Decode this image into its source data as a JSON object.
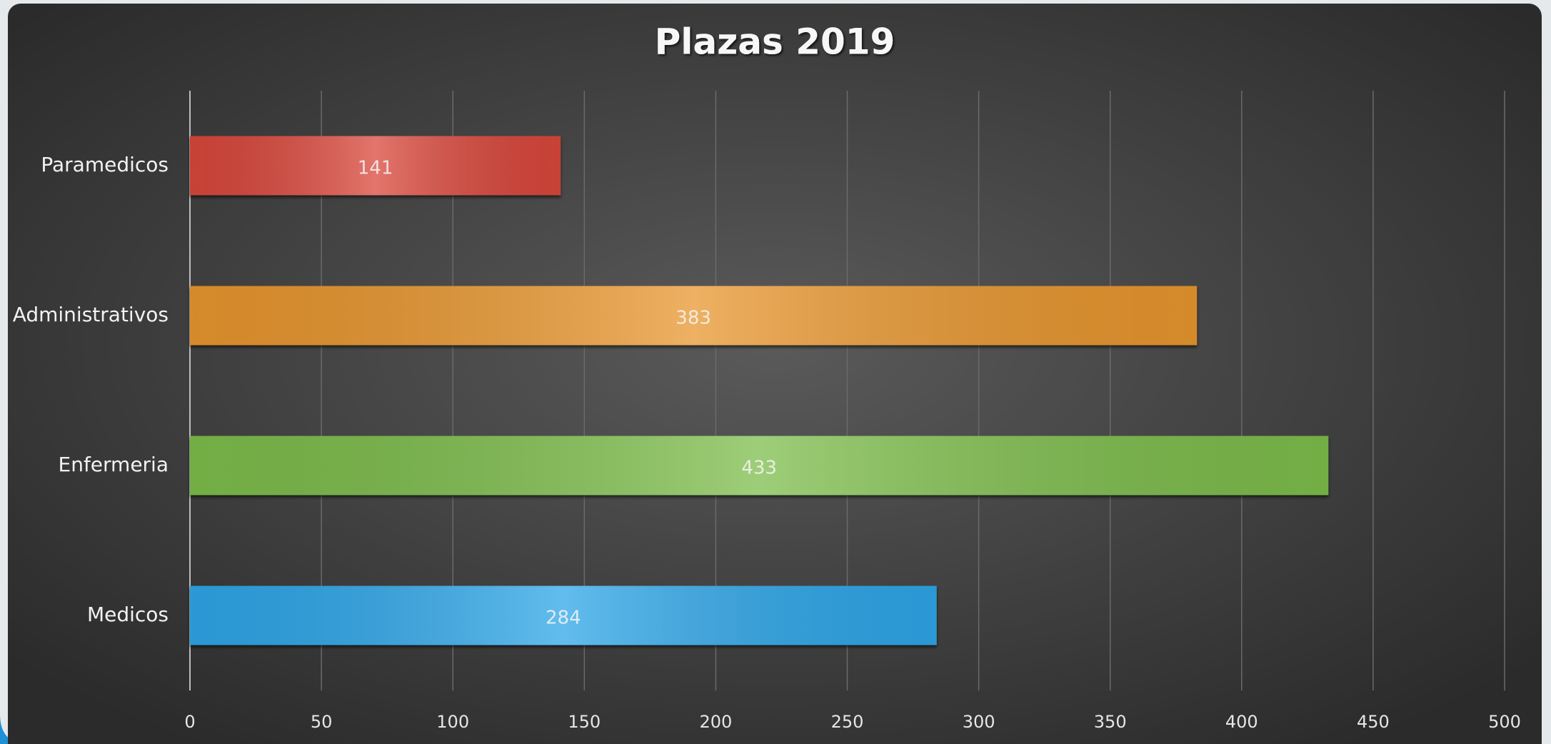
{
  "chart_data": {
    "type": "hbar",
    "title": "Plazas 2019",
    "categories": [
      "Paramedicos",
      "Administrativos",
      "Enfermeria",
      "Medicos"
    ],
    "values": [
      141,
      383,
      433,
      284
    ],
    "colors": [
      "#d9473b",
      "#e8962f",
      "#7dbd4c",
      "#2ea6e8"
    ],
    "xlim": [
      0,
      500
    ],
    "xticks": [
      0,
      50,
      100,
      150,
      200,
      250,
      300,
      350,
      400,
      450,
      500
    ],
    "grid": true
  }
}
